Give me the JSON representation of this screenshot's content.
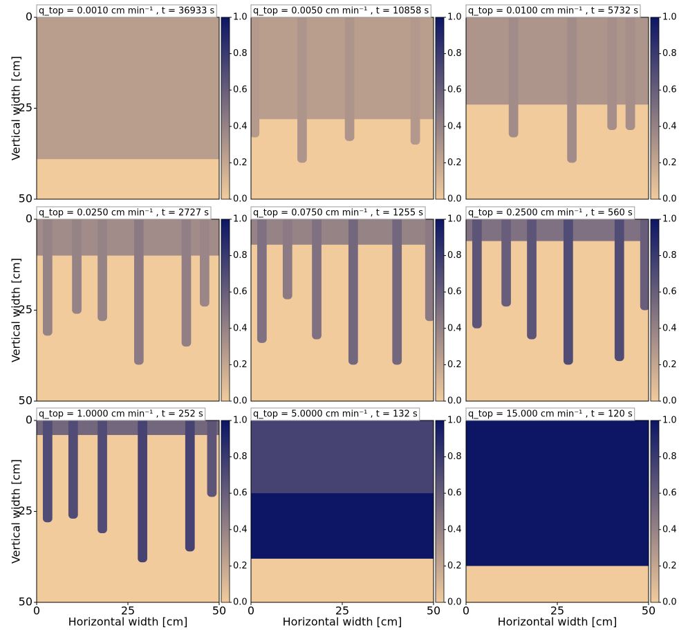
{
  "chart_data": [
    {
      "type": "heatmap",
      "title": "q_top = 0.0010 cm min⁻¹ , t = 36933 s",
      "ylabel": "Vertical width [cm]",
      "xlim": [
        0,
        50
      ],
      "ylim": [
        50,
        0
      ],
      "yticks": [
        0,
        25,
        50
      ],
      "layers": {
        "depth": [
          39
        ],
        "values": [
          0.25
        ]
      },
      "fingers": {
        "x": [],
        "depth": [],
        "values": []
      },
      "colormap": [
        "#f2cb9c",
        "#0c1665"
      ],
      "zlim": [
        0,
        1
      ],
      "zticks": [
        {
          "value": 0,
          "label": "0.0"
        },
        {
          "value": 0.2,
          "label": "0.2"
        },
        {
          "value": 0.4,
          "label": "0.4"
        },
        {
          "value": 0.6,
          "label": "0.6"
        },
        {
          "value": 0.8,
          "label": "0.8"
        },
        {
          "value": 1,
          "label": "1.0"
        }
      ]
    },
    {
      "type": "heatmap",
      "title": "q_top = 0.0050 cm min⁻¹ , t = 10858 s",
      "xlim": [
        0,
        50
      ],
      "ylim": [
        50,
        0
      ],
      "layers": {
        "depth": [
          28
        ],
        "values": [
          0.25
        ]
      },
      "fingers": {
        "x": [
          1,
          14,
          27,
          45
        ],
        "depth": [
          33,
          40,
          34,
          35
        ],
        "values": [
          0.27,
          0.3,
          0.3,
          0.28
        ]
      },
      "colormap": [
        "#f2cb9c",
        "#0c1665"
      ],
      "zlim": [
        0,
        1
      ],
      "zticks": [
        {
          "value": 0,
          "label": "0.0"
        },
        {
          "value": 0.2,
          "label": "0.2"
        },
        {
          "value": 0.4,
          "label": "0.4"
        },
        {
          "value": 0.6,
          "label": "0.6"
        },
        {
          "value": 0.8,
          "label": "0.8"
        },
        {
          "value": 1,
          "label": "1.0"
        }
      ]
    },
    {
      "type": "heatmap",
      "title": "q_top = 0.0100 cm min⁻¹ , t = 5732 s",
      "xlim": [
        0,
        50
      ],
      "ylim": [
        50,
        0
      ],
      "layers": {
        "depth": [
          24
        ],
        "values": [
          0.3
        ]
      },
      "fingers": {
        "x": [
          13,
          29,
          40,
          45
        ],
        "depth": [
          33,
          40,
          31,
          31
        ],
        "values": [
          0.35,
          0.35,
          0.33,
          0.33
        ]
      },
      "colormap": [
        "#f2cb9c",
        "#0c1665"
      ],
      "zlim": [
        0,
        1
      ],
      "zticks": [
        {
          "value": 0,
          "label": "0.0"
        },
        {
          "value": 0.2,
          "label": "0.2"
        },
        {
          "value": 0.4,
          "label": "0.4"
        },
        {
          "value": 0.6,
          "label": "0.6"
        },
        {
          "value": 0.8,
          "label": "0.8"
        },
        {
          "value": 1,
          "label": "1.0"
        }
      ]
    },
    {
      "type": "heatmap",
      "title": "q_top = 0.0250 cm min⁻¹ , t = 2727 s",
      "ylabel": "Vertical width [cm]",
      "xlim": [
        0,
        50
      ],
      "ylim": [
        50,
        0
      ],
      "yticks": [
        0,
        25,
        50
      ],
      "layers": {
        "depth": [
          10
        ],
        "values": [
          0.35
        ]
      },
      "fingers": {
        "x": [
          3,
          11,
          18,
          28,
          41,
          46
        ],
        "depth": [
          32,
          26,
          28,
          40,
          35,
          24
        ],
        "values": [
          0.4,
          0.4,
          0.4,
          0.45,
          0.42,
          0.38
        ]
      },
      "colormap": [
        "#f2cb9c",
        "#0c1665"
      ],
      "zlim": [
        0,
        1
      ],
      "zticks": [
        {
          "value": 0,
          "label": "0.0"
        },
        {
          "value": 0.2,
          "label": "0.2"
        },
        {
          "value": 0.4,
          "label": "0.4"
        },
        {
          "value": 0.6,
          "label": "0.6"
        },
        {
          "value": 0.8,
          "label": "0.8"
        },
        {
          "value": 1,
          "label": "1.0"
        }
      ]
    },
    {
      "type": "heatmap",
      "title": "q_top = 0.0750 cm min⁻¹ , t = 1255 s",
      "xlim": [
        0,
        50
      ],
      "ylim": [
        50,
        0
      ],
      "layers": {
        "depth": [
          7
        ],
        "values": [
          0.4
        ]
      },
      "fingers": {
        "x": [
          3,
          10,
          18,
          28,
          40,
          49
        ],
        "depth": [
          34,
          22,
          33,
          40,
          40,
          28
        ],
        "values": [
          0.5,
          0.45,
          0.5,
          0.55,
          0.55,
          0.45
        ]
      },
      "colormap": [
        "#f2cb9c",
        "#0c1665"
      ],
      "zlim": [
        0,
        1
      ],
      "zticks": [
        {
          "value": 0,
          "label": "0.0"
        },
        {
          "value": 0.2,
          "label": "0.2"
        },
        {
          "value": 0.4,
          "label": "0.4"
        },
        {
          "value": 0.6,
          "label": "0.6"
        },
        {
          "value": 0.8,
          "label": "0.8"
        },
        {
          "value": 1,
          "label": "1.0"
        }
      ]
    },
    {
      "type": "heatmap",
      "title": "q_top = 0.2500 cm min⁻¹ , t = 560 s",
      "xlim": [
        0,
        50
      ],
      "ylim": [
        50,
        0
      ],
      "layers": {
        "depth": [
          6
        ],
        "values": [
          0.5
        ]
      },
      "fingers": {
        "x": [
          3,
          11,
          18,
          28,
          42,
          49
        ],
        "depth": [
          30,
          24,
          33,
          40,
          39,
          25
        ],
        "values": [
          0.65,
          0.6,
          0.65,
          0.7,
          0.7,
          0.6
        ]
      },
      "colormap": [
        "#f2cb9c",
        "#0c1665"
      ],
      "zlim": [
        0,
        1
      ],
      "zticks": [
        {
          "value": 0,
          "label": "0.0"
        },
        {
          "value": 0.2,
          "label": "0.2"
        },
        {
          "value": 0.4,
          "label": "0.4"
        },
        {
          "value": 0.6,
          "label": "0.6"
        },
        {
          "value": 0.8,
          "label": "0.8"
        },
        {
          "value": 1,
          "label": "1.0"
        }
      ]
    },
    {
      "type": "heatmap",
      "title": "q_top = 1.0000 cm min⁻¹ , t = 252 s",
      "ylabel": "Vertical width [cm]",
      "xlabel": "Horizontal width [cm]",
      "xlim": [
        0,
        50
      ],
      "ylim": [
        50,
        0
      ],
      "xticks": [
        0,
        25,
        50
      ],
      "yticks": [
        0,
        25,
        50
      ],
      "layers": {
        "depth": [
          4
        ],
        "values": [
          0.55
        ]
      },
      "fingers": {
        "x": [
          3,
          10,
          18,
          29,
          42,
          48
        ],
        "depth": [
          28,
          27,
          31,
          39,
          36,
          21
        ],
        "values": [
          0.7,
          0.7,
          0.7,
          0.75,
          0.75,
          0.65
        ]
      },
      "colormap": [
        "#f2cb9c",
        "#0c1665"
      ],
      "zlim": [
        0,
        1
      ],
      "zticks": [
        {
          "value": 0,
          "label": "0.0"
        },
        {
          "value": 0.2,
          "label": "0.2"
        },
        {
          "value": 0.4,
          "label": "0.4"
        },
        {
          "value": 0.6,
          "label": "0.6"
        },
        {
          "value": 0.8,
          "label": "0.8"
        },
        {
          "value": 1,
          "label": "1.0"
        }
      ]
    },
    {
      "type": "heatmap",
      "title": "q_top = 5.0000 cm min⁻¹ , t = 132 s",
      "xlabel": "Horizontal width [cm]",
      "xlim": [
        0,
        50
      ],
      "ylim": [
        50,
        0
      ],
      "xticks": [
        0,
        25,
        50
      ],
      "layers": {
        "depth": [
          38,
          20
        ],
        "values": [
          1,
          0.75
        ]
      },
      "fingers": {
        "x": [],
        "depth": [],
        "values": []
      },
      "colormap": [
        "#f2cb9c",
        "#0c1665"
      ],
      "zlim": [
        0,
        1
      ],
      "zticks": [
        {
          "value": 0,
          "label": "0.0"
        },
        {
          "value": 0.2,
          "label": "0.2"
        },
        {
          "value": 0.4,
          "label": "0.4"
        },
        {
          "value": 0.6,
          "label": "0.6"
        },
        {
          "value": 0.8,
          "label": "0.8"
        },
        {
          "value": 1,
          "label": "1.0"
        }
      ]
    },
    {
      "type": "heatmap",
      "title": "q_top = 15.000 cm min⁻¹ , t = 120 s",
      "xlabel": "Horizontal width [cm]",
      "xlim": [
        0,
        50
      ],
      "ylim": [
        50,
        0
      ],
      "xticks": [
        0,
        25,
        50
      ],
      "layers": {
        "depth": [
          40
        ],
        "values": [
          1
        ]
      },
      "fingers": {
        "x": [],
        "depth": [],
        "values": []
      },
      "colormap": [
        "#f2cb9c",
        "#0c1665"
      ],
      "zlim": [
        0,
        1
      ],
      "zticks": [
        {
          "value": 0,
          "label": "0.0"
        },
        {
          "value": 0.2,
          "label": "0.2"
        },
        {
          "value": 0.4,
          "label": "0.4"
        },
        {
          "value": 0.6,
          "label": "0.6"
        },
        {
          "value": 0.8,
          "label": "0.8"
        },
        {
          "value": 1,
          "label": "1.0"
        }
      ]
    }
  ]
}
